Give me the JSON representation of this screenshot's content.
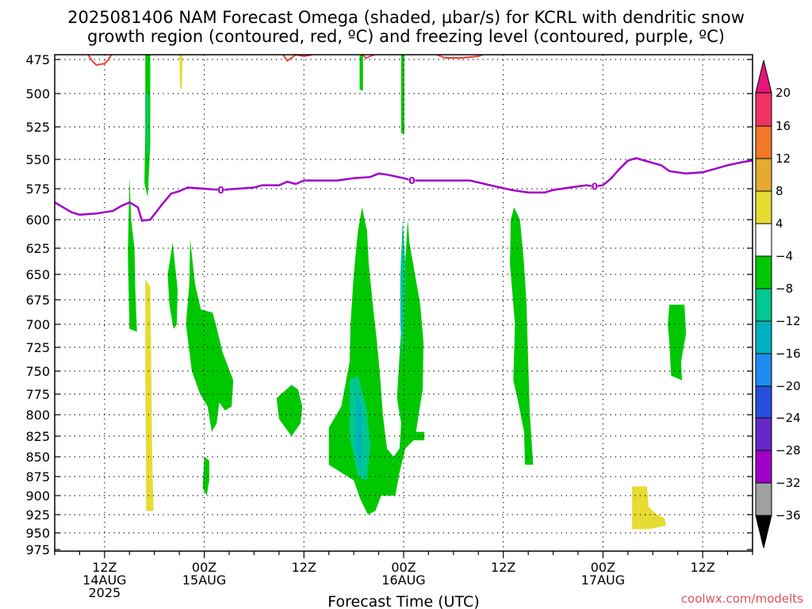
{
  "title": {
    "line1": "2025081406 NAM Forecast Omega (shaded, µbar/s) for KCRL with dendritic snow",
    "line2": "growth region (contoured, red, ºC) and freezing level (contoured, purple, ºC)"
  },
  "credit": "coolwx.com/modelts",
  "colors": {
    "freezing_level": "#a000c8",
    "dendritic": "#f04030",
    "terrain": "#a0522d",
    "omega_green": "#00c800",
    "omega_teal": "#00c890",
    "omega_cyan": "#00b0c0",
    "omega_yellow": "#e6dc32"
  },
  "chart_data": {
    "type": "heatmap",
    "xlabel": "Forecast Time (UTC)",
    "x_range_hours": [
      0,
      84
    ],
    "y_range_mb": [
      975,
      472
    ],
    "y_ticks": [
      475,
      500,
      525,
      550,
      575,
      600,
      625,
      650,
      675,
      700,
      725,
      750,
      775,
      800,
      825,
      850,
      875,
      900,
      925,
      950,
      975
    ],
    "x_ticks": [
      {
        "hour": 6,
        "lines": [
          "12Z",
          "14AUG",
          "2025"
        ]
      },
      {
        "hour": 18,
        "lines": [
          "00Z",
          "15AUG"
        ]
      },
      {
        "hour": 30,
        "lines": [
          "12Z"
        ]
      },
      {
        "hour": 42,
        "lines": [
          "00Z",
          "16AUG"
        ]
      },
      {
        "hour": 54,
        "lines": [
          "12Z"
        ]
      },
      {
        "hour": 66,
        "lines": [
          "00Z",
          "17AUG"
        ]
      },
      {
        "hour": 78,
        "lines": [
          "12Z"
        ]
      }
    ],
    "grid": true,
    "colorbar": {
      "labels": [
        "20",
        "16",
        "12",
        "8",
        "4",
        "−4",
        "−8",
        "−12",
        "−16",
        "−20",
        "−24",
        "−28",
        "−32",
        "−36"
      ],
      "bins": [
        {
          "color": "#f03264"
        },
        {
          "color": "#f07828"
        },
        {
          "color": "#e6aa32"
        },
        {
          "color": "#e6dc32"
        },
        {
          "color": "#ffffff"
        },
        {
          "color": "#00c800"
        },
        {
          "color": "#00c890"
        },
        {
          "color": "#00b0c0"
        },
        {
          "color": "#1e8cf0"
        },
        {
          "color": "#2850dc"
        },
        {
          "color": "#6428c8"
        },
        {
          "color": "#a000c8"
        },
        {
          "color": "#a0a0a0"
        }
      ],
      "top_arrow_color": "#e6147a",
      "bottom_arrow_color": "#000000"
    },
    "freezing_level": {
      "label": "0",
      "label_hours": [
        20,
        43,
        65
      ],
      "points": [
        [
          0,
          586
        ],
        [
          2,
          594
        ],
        [
          3,
          596
        ],
        [
          5,
          595
        ],
        [
          7,
          593
        ],
        [
          8,
          589
        ],
        [
          9,
          586
        ],
        [
          10,
          590
        ],
        [
          10.5,
          601
        ],
        [
          11.5,
          600
        ],
        [
          13,
          587
        ],
        [
          14,
          579
        ],
        [
          15,
          577
        ],
        [
          16,
          574
        ],
        [
          18,
          575
        ],
        [
          20,
          576
        ],
        [
          22,
          575
        ],
        [
          24,
          574
        ],
        [
          25,
          572
        ],
        [
          27,
          572
        ],
        [
          28,
          569
        ],
        [
          29,
          571
        ],
        [
          30,
          568
        ],
        [
          32,
          568
        ],
        [
          34,
          568
        ],
        [
          36,
          566
        ],
        [
          38,
          565
        ],
        [
          39,
          562
        ],
        [
          40,
          563
        ],
        [
          42,
          566
        ],
        [
          43,
          568
        ],
        [
          46,
          568
        ],
        [
          50,
          568
        ],
        [
          53,
          573
        ],
        [
          55,
          576
        ],
        [
          57,
          578
        ],
        [
          59,
          578
        ],
        [
          60,
          576
        ],
        [
          62,
          574
        ],
        [
          64,
          572
        ],
        [
          65,
          573
        ],
        [
          66,
          572
        ],
        [
          67,
          566
        ],
        [
          68,
          558
        ],
        [
          69,
          551
        ],
        [
          70,
          549
        ],
        [
          71,
          551
        ],
        [
          73,
          555
        ],
        [
          74,
          560
        ],
        [
          76,
          562
        ],
        [
          78,
          561
        ],
        [
          80,
          557
        ],
        [
          81,
          555
        ],
        [
          83,
          552
        ],
        [
          84,
          551
        ]
      ]
    },
    "dendritic_contours": [
      {
        "points": [
          [
            4,
            472
          ],
          [
            4.5,
            476
          ],
          [
            5,
            479
          ],
          [
            6,
            478
          ],
          [
            6.5,
            475
          ],
          [
            6.8,
            472
          ]
        ]
      },
      {
        "points": [
          [
            27.5,
            472
          ],
          [
            28,
            476
          ],
          [
            28.5,
            474
          ],
          [
            29,
            472
          ],
          [
            30,
            473
          ],
          [
            31,
            472
          ]
        ]
      },
      {
        "points": [
          [
            37,
            472
          ],
          [
            37.5,
            474
          ],
          [
            38,
            473
          ],
          [
            38.5,
            472
          ]
        ]
      },
      {
        "points": [
          [
            46,
            472
          ],
          [
            47,
            474
          ],
          [
            49,
            474
          ],
          [
            51,
            473
          ],
          [
            51.5,
            472
          ]
        ]
      }
    ],
    "omega_regions": [
      {
        "value": -6,
        "points": [
          [
            10.9,
            472
          ],
          [
            11.5,
            472
          ],
          [
            11.5,
            538
          ],
          [
            11.2,
            582
          ],
          [
            10.8,
            570
          ],
          [
            10.9,
            530
          ]
        ]
      },
      {
        "value": -10,
        "points": [
          [
            11,
            500
          ],
          [
            11.3,
            500
          ],
          [
            11.3,
            545
          ],
          [
            11.1,
            545
          ]
        ]
      },
      {
        "value": 6,
        "points": [
          [
            15,
            472
          ],
          [
            15.4,
            472
          ],
          [
            15.3,
            495
          ],
          [
            15.1,
            498
          ]
        ]
      },
      {
        "value": -6,
        "points": [
          [
            36.7,
            472
          ],
          [
            37.1,
            472
          ],
          [
            37.1,
            498
          ],
          [
            36.7,
            497
          ]
        ]
      },
      {
        "value": -6,
        "points": [
          [
            41.7,
            472
          ],
          [
            42.1,
            472
          ],
          [
            42.1,
            530
          ],
          [
            41.7,
            530
          ]
        ]
      },
      {
        "value": -6,
        "points": [
          [
            9.0,
            565
          ],
          [
            9.2,
            600
          ],
          [
            9.6,
            625
          ],
          [
            9.7,
            665
          ],
          [
            9.9,
            708
          ],
          [
            9.0,
            705
          ],
          [
            8.8,
            630
          ]
        ]
      },
      {
        "value": 6,
        "points": [
          [
            10.9,
            655
          ],
          [
            11.5,
            662
          ],
          [
            11.6,
            720
          ],
          [
            11.7,
            820
          ],
          [
            11.8,
            880
          ],
          [
            11.9,
            920
          ],
          [
            11.0,
            920
          ],
          [
            11.0,
            860
          ],
          [
            10.9,
            760
          ]
        ]
      },
      {
        "value": -6,
        "points": [
          [
            14.2,
            620
          ],
          [
            14.8,
            665
          ],
          [
            14.7,
            700
          ],
          [
            14.3,
            705
          ],
          [
            13.8,
            680
          ],
          [
            13.6,
            650
          ]
        ]
      },
      {
        "value": -6,
        "points": [
          [
            16.3,
            617
          ],
          [
            16.9,
            660
          ],
          [
            17.6,
            685
          ],
          [
            19.0,
            688
          ],
          [
            19.4,
            700
          ],
          [
            20.2,
            730
          ],
          [
            21.5,
            760
          ],
          [
            21.3,
            790
          ],
          [
            20.5,
            795
          ],
          [
            19.8,
            785
          ],
          [
            19.5,
            810
          ],
          [
            18.9,
            820
          ],
          [
            18.4,
            790
          ],
          [
            17.5,
            775
          ],
          [
            16.5,
            750
          ],
          [
            15.8,
            700
          ],
          [
            16.2,
            660
          ]
        ]
      },
      {
        "value": -6,
        "points": [
          [
            18.0,
            850
          ],
          [
            18.6,
            855
          ],
          [
            18.6,
            880
          ],
          [
            18.3,
            900
          ],
          [
            17.8,
            890
          ]
        ]
      },
      {
        "value": -6,
        "points": [
          [
            28.5,
            765
          ],
          [
            29.3,
            770
          ],
          [
            29.8,
            790
          ],
          [
            29.6,
            810
          ],
          [
            28.5,
            825
          ],
          [
            27.0,
            805
          ],
          [
            26.7,
            780
          ]
        ]
      },
      {
        "value": -6,
        "points": [
          [
            37.0,
            590
          ],
          [
            37.6,
            610
          ],
          [
            37.8,
            640
          ],
          [
            38.3,
            680
          ],
          [
            38.8,
            720
          ],
          [
            39.2,
            760
          ],
          [
            39.5,
            800
          ],
          [
            40.0,
            840
          ],
          [
            40.8,
            850
          ],
          [
            41.5,
            840
          ],
          [
            41.7,
            810
          ],
          [
            41.2,
            780
          ],
          [
            42.5,
            600
          ],
          [
            42.7,
            620
          ],
          [
            44.0,
            680
          ],
          [
            44.4,
            720
          ],
          [
            44.3,
            770
          ],
          [
            43.8,
            800
          ],
          [
            43.5,
            820
          ],
          [
            44.5,
            820
          ],
          [
            44.5,
            830
          ],
          [
            43.2,
            830
          ],
          [
            42.2,
            840
          ],
          [
            41.5,
            870
          ],
          [
            41.0,
            900
          ],
          [
            39.3,
            900
          ],
          [
            38.6,
            920
          ],
          [
            37.7,
            925
          ],
          [
            36.8,
            905
          ],
          [
            36.0,
            880
          ],
          [
            34.5,
            870
          ],
          [
            33.0,
            860
          ],
          [
            33.0,
            815
          ],
          [
            34.5,
            790
          ],
          [
            35.5,
            740
          ],
          [
            35.6,
            700
          ],
          [
            36.0,
            650
          ],
          [
            36.5,
            610
          ]
        ]
      },
      {
        "value": -10,
        "points": [
          [
            35.5,
            760
          ],
          [
            36.5,
            755
          ],
          [
            37.5,
            790
          ],
          [
            38.0,
            835
          ],
          [
            37.6,
            880
          ],
          [
            36.5,
            875
          ],
          [
            35.5,
            825
          ]
        ]
      },
      {
        "value": -14,
        "points": [
          [
            36.3,
            775
          ],
          [
            36.9,
            790
          ],
          [
            37.0,
            840
          ],
          [
            36.8,
            870
          ],
          [
            36.3,
            835
          ]
        ]
      },
      {
        "value": -8,
        "points": [
          [
            41.9,
            600
          ],
          [
            42.2,
            640
          ],
          [
            42.1,
            700
          ],
          [
            41.9,
            740
          ],
          [
            41.6,
            700
          ],
          [
            41.6,
            650
          ]
        ]
      },
      {
        "value": -6,
        "points": [
          [
            55.3,
            590
          ],
          [
            56.0,
            600
          ],
          [
            56.5,
            640
          ],
          [
            56.8,
            680
          ],
          [
            57.0,
            740
          ],
          [
            57.2,
            800
          ],
          [
            57.6,
            860
          ],
          [
            56.6,
            860
          ],
          [
            56.5,
            820
          ],
          [
            55.7,
            780
          ],
          [
            55.2,
            760
          ],
          [
            55.4,
            700
          ],
          [
            54.8,
            640
          ],
          [
            54.9,
            600
          ]
        ]
      },
      {
        "value": -6,
        "points": [
          [
            74.0,
            680
          ],
          [
            75.8,
            680
          ],
          [
            76.0,
            710
          ],
          [
            75.4,
            740
          ],
          [
            75.5,
            760
          ],
          [
            74.2,
            755
          ],
          [
            74.0,
            720
          ],
          [
            73.8,
            700
          ]
        ]
      },
      {
        "value": 6,
        "points": [
          [
            69.5,
            888
          ],
          [
            71.3,
            888
          ],
          [
            71.5,
            915
          ],
          [
            72.5,
            925
          ],
          [
            73.4,
            930
          ],
          [
            73.6,
            940
          ],
          [
            71.5,
            945
          ],
          [
            69.5,
            945
          ]
        ]
      }
    ]
  }
}
